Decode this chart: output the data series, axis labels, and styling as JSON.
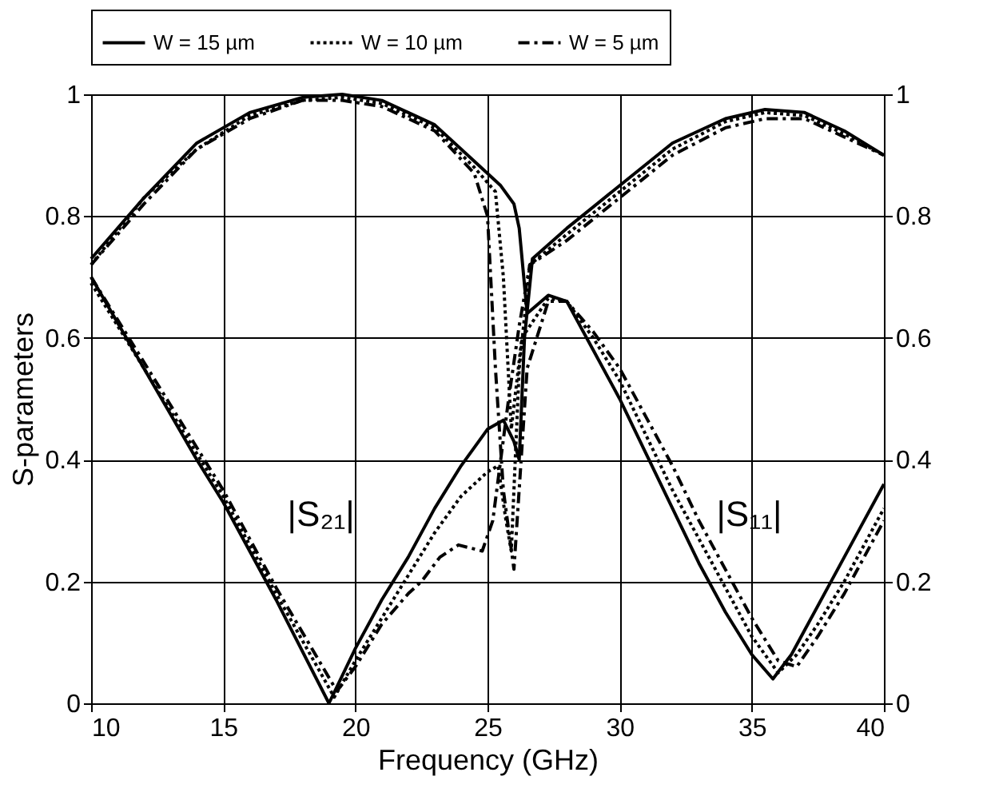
{
  "chart_data": {
    "type": "line",
    "xlabel": "Frequency (GHz)",
    "ylabel": "S-parameters",
    "xlim": [
      10,
      40
    ],
    "xticks": [
      10,
      15,
      20,
      25,
      30,
      35,
      40
    ],
    "ylim": [
      0,
      1
    ],
    "yticks": [
      0,
      0.2,
      0.4,
      0.6,
      0.8,
      1
    ],
    "y2lim": [
      0,
      1
    ],
    "y2ticks": [
      0,
      0.2,
      0.4,
      0.6,
      0.8,
      1
    ],
    "grid": true,
    "legend": "top",
    "marker": "none",
    "series": [
      {
        "name": "W = 15 µm",
        "color": "#000000",
        "line_style": "solid",
        "x": [
          10,
          12,
          14,
          15,
          17,
          19,
          20,
          21,
          22,
          23,
          24,
          25,
          25.6,
          26.0,
          26.2,
          26.4,
          26.7,
          28,
          30,
          32,
          34,
          35.5,
          37,
          38.5,
          40
        ],
        "values": [
          0.7,
          0.55,
          0.4,
          0.33,
          0.17,
          0.0,
          0.09,
          0.17,
          0.24,
          0.32,
          0.39,
          0.45,
          0.465,
          0.43,
          0.4,
          0.6,
          0.73,
          0.78,
          0.85,
          0.92,
          0.96,
          0.975,
          0.97,
          0.94,
          0.9
        ]
      },
      {
        "color": "#000000",
        "line_style": "solid",
        "x": [
          10,
          12,
          14,
          16,
          18,
          19.5,
          21,
          23,
          24.5,
          25.5,
          26.0,
          26.2,
          26.5,
          27.3,
          28,
          29,
          30,
          31,
          32,
          33,
          34,
          35,
          35.8,
          36.5,
          37,
          38,
          39,
          40
        ],
        "values": [
          0.73,
          0.83,
          0.92,
          0.97,
          0.995,
          1.0,
          0.99,
          0.95,
          0.89,
          0.85,
          0.82,
          0.78,
          0.64,
          0.67,
          0.66,
          0.58,
          0.5,
          0.41,
          0.32,
          0.23,
          0.15,
          0.08,
          0.04,
          0.08,
          0.12,
          0.2,
          0.28,
          0.36
        ]
      },
      {
        "name": "W = 10 µm",
        "color": "#000000",
        "line_style": "dotted",
        "x": [
          10,
          12,
          14,
          15,
          17,
          19.2,
          20,
          21,
          22,
          23,
          24,
          25,
          25.4,
          25.7,
          25.9,
          26.2,
          26.6,
          28,
          30,
          32,
          34,
          35.5,
          37,
          38.5,
          40
        ],
        "values": [
          0.69,
          0.55,
          0.41,
          0.34,
          0.18,
          0.01,
          0.07,
          0.14,
          0.21,
          0.28,
          0.34,
          0.38,
          0.39,
          0.3,
          0.25,
          0.55,
          0.72,
          0.77,
          0.84,
          0.91,
          0.955,
          0.97,
          0.965,
          0.935,
          0.9
        ]
      },
      {
        "color": "#000000",
        "line_style": "dotted",
        "x": [
          10,
          12,
          14,
          16,
          18,
          19.5,
          21,
          23,
          24.5,
          25.3,
          25.6,
          25.9,
          26.3,
          27.3,
          28,
          29,
          30,
          31,
          32,
          33,
          34,
          35,
          36.0,
          36.7,
          37.5,
          38.5,
          40
        ],
        "values": [
          0.72,
          0.83,
          0.91,
          0.965,
          0.99,
          0.995,
          0.985,
          0.945,
          0.88,
          0.84,
          0.7,
          0.45,
          0.6,
          0.665,
          0.66,
          0.6,
          0.53,
          0.44,
          0.35,
          0.27,
          0.19,
          0.11,
          0.05,
          0.08,
          0.13,
          0.2,
          0.32
        ]
      },
      {
        "name": "W = 5 µm",
        "color": "#000000",
        "line_style": "dashdot",
        "x": [
          10,
          12,
          14,
          15,
          17,
          19.3,
          20,
          21,
          22,
          22.5,
          23.2,
          23.9,
          24.8,
          25.2,
          25.5,
          25.8,
          26.2,
          26.6,
          28,
          30,
          32,
          34,
          35.5,
          37,
          38.5,
          40
        ],
        "values": [
          0.7,
          0.56,
          0.42,
          0.35,
          0.19,
          0.02,
          0.06,
          0.13,
          0.18,
          0.2,
          0.24,
          0.26,
          0.25,
          0.3,
          0.4,
          0.5,
          0.62,
          0.72,
          0.76,
          0.83,
          0.9,
          0.945,
          0.96,
          0.96,
          0.93,
          0.9
        ]
      },
      {
        "color": "#000000",
        "line_style": "dashdot",
        "x": [
          10,
          12,
          14,
          16,
          18,
          19.5,
          21,
          23,
          24.5,
          25.0,
          25.3,
          25.6,
          26.0,
          26.5,
          27.3,
          28,
          29,
          30,
          31,
          32,
          33,
          34,
          35,
          36.0,
          36.7,
          37.5,
          38.5,
          40
        ],
        "values": [
          0.72,
          0.82,
          0.91,
          0.96,
          0.99,
          0.99,
          0.98,
          0.94,
          0.87,
          0.8,
          0.55,
          0.35,
          0.22,
          0.55,
          0.66,
          0.66,
          0.61,
          0.55,
          0.47,
          0.39,
          0.3,
          0.22,
          0.14,
          0.07,
          0.06,
          0.11,
          0.18,
          0.3
        ]
      }
    ],
    "annotations": [
      "|S₂₁|",
      "|S₁₁|"
    ]
  }
}
